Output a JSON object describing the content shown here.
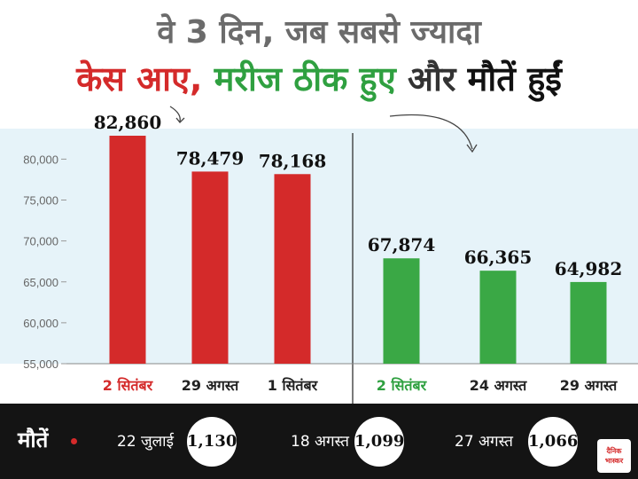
{
  "header": {
    "line1": "वे 3 दिन, जब सबसे ज्यादा",
    "line2_red": "केस आए,",
    "line2_green": "मरीज ठीक हुए",
    "line2_and": "और",
    "line2_black": "मौतें हुईं"
  },
  "colors": {
    "cases": "#d42a2a",
    "recovered": "#3aa845",
    "panel_bg": "#e6f3f9"
  },
  "chart_data": {
    "type": "bar",
    "ylim": [
      55000,
      82860
    ],
    "yticks": [
      "80,000",
      "75,000",
      "70,000",
      "65,000",
      "60,000",
      "55,000"
    ],
    "ytick_values": [
      80000,
      75000,
      70000,
      65000,
      60000,
      55000
    ],
    "grid": false,
    "series": [
      {
        "group": "cases",
        "categories": [
          "2 सितंबर",
          "29 अगस्त",
          "1 सितंबर"
        ],
        "values": [
          82860,
          78479,
          78168
        ],
        "labels": [
          "82,860",
          "78,479",
          "78,168"
        ]
      },
      {
        "group": "recovered",
        "categories": [
          "2 सितंबर",
          "24 अगस्त",
          "29 अगस्त"
        ],
        "values": [
          67874,
          66365,
          64982
        ],
        "labels": [
          "67,874",
          "66,365",
          "64,982"
        ]
      }
    ]
  },
  "deaths": {
    "label": "मौतें",
    "items": [
      {
        "date": "22 जुलाई",
        "value": "1,130"
      },
      {
        "date": "18 अगस्त",
        "value": "1,099"
      },
      {
        "date": "27 अगस्त",
        "value": "1,066"
      }
    ]
  },
  "logo": {
    "line1": "दैनिक",
    "line2": "भास्कर"
  }
}
